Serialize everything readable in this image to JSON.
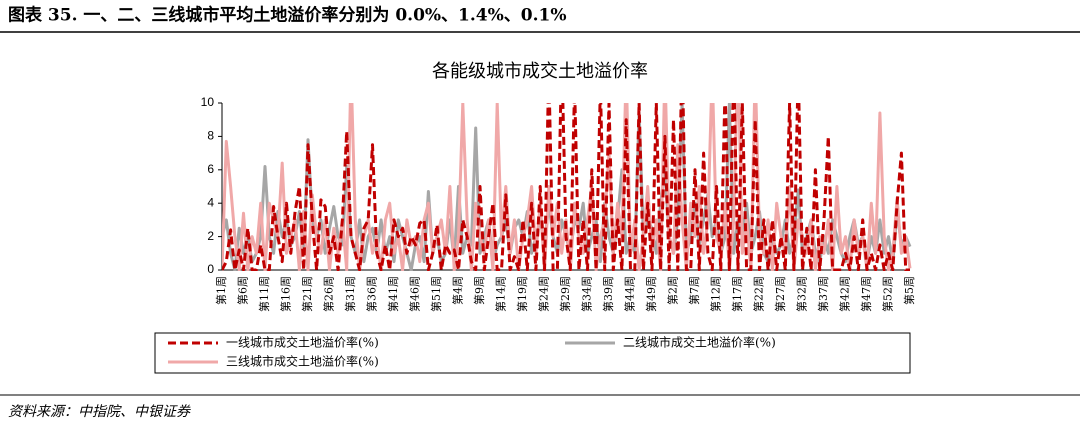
{
  "header": {
    "title": "图表 35. 一、二、三线城市平均土地溢价率分别为 0.0%、1.4%、0.1%"
  },
  "chart_data": {
    "type": "line",
    "title": "各能级城市成交土地溢价率",
    "categories": [
      "第1周",
      null,
      null,
      null,
      null,
      "第6周",
      null,
      null,
      null,
      null,
      "第11周",
      null,
      null,
      null,
      null,
      "第16周",
      null,
      null,
      null,
      null,
      "第21周",
      null,
      null,
      null,
      null,
      "第26周",
      null,
      null,
      null,
      null,
      "第31周",
      null,
      null,
      null,
      null,
      "第36周",
      null,
      null,
      null,
      null,
      "第41周",
      null,
      null,
      null,
      null,
      "第46周",
      null,
      null,
      null,
      null,
      "第51周",
      null,
      null,
      null,
      null,
      "第4周",
      null,
      null,
      null,
      null,
      "第9周",
      null,
      null,
      null,
      null,
      "第14周",
      null,
      null,
      null,
      null,
      "第19周",
      null,
      null,
      null,
      null,
      "第24周",
      null,
      null,
      null,
      null,
      "第29周",
      null,
      null,
      null,
      null,
      "第34周",
      null,
      null,
      null,
      null,
      "第39周",
      null,
      null,
      null,
      null,
      "第44周",
      null,
      null,
      null,
      null,
      "第49周",
      null,
      null,
      null,
      null,
      "第2周",
      null,
      null,
      null,
      null,
      "第7周",
      null,
      null,
      null,
      null,
      "第12周",
      null,
      null,
      null,
      null,
      "第17周",
      null,
      null,
      null,
      null,
      "第22周",
      null,
      null,
      null,
      null,
      "第27周",
      null,
      null,
      null,
      null,
      "第32周",
      null,
      null,
      null,
      null,
      "第37周",
      null,
      null,
      null,
      null,
      "第42周",
      null,
      null,
      null,
      null,
      "第47周",
      null,
      null,
      null,
      null,
      "第52周",
      null,
      null,
      null,
      null,
      "第5周"
    ],
    "series": [
      {
        "name": "一线城市成交土地溢价率(%)",
        "color": "#c00000",
        "dash": true,
        "values": [
          0,
          0.5,
          2.4,
          0,
          1.2,
          0,
          2.5,
          0,
          0,
          1.5,
          0,
          0,
          3.8,
          2,
          0.5,
          4,
          1,
          3.5,
          5,
          0,
          7.5,
          3,
          0,
          4.2,
          3.8,
          1,
          2,
          0,
          3,
          8.3,
          2,
          1,
          0,
          2.5,
          3,
          7.5,
          1,
          0,
          1.5,
          0,
          3,
          2,
          2.5,
          1,
          2,
          1.5,
          2.8,
          3,
          0,
          1,
          2.7,
          0,
          1.5,
          1,
          1.2,
          0,
          3,
          2,
          0.5,
          0,
          5,
          0,
          2,
          4,
          0,
          0,
          4.5,
          0,
          0.8,
          0,
          3,
          0,
          4,
          0,
          5,
          0,
          12,
          0,
          0,
          13,
          2,
          0,
          11,
          0,
          3,
          0,
          6,
          0,
          11,
          0,
          10,
          0,
          3,
          0,
          9,
          0,
          0,
          10,
          0,
          4,
          0,
          10,
          0,
          8,
          0,
          9,
          0,
          13,
          0,
          0,
          6,
          0,
          7,
          1,
          0,
          5,
          0,
          11,
          0,
          12,
          0,
          10,
          0,
          0,
          9,
          0,
          3,
          0,
          3,
          0,
          2,
          0,
          10,
          0,
          12,
          0,
          2.5,
          0,
          6,
          0,
          3,
          8,
          0,
          0,
          0,
          1,
          0,
          2,
          0,
          3,
          0,
          1,
          0,
          1.5,
          0,
          1,
          0,
          4,
          7,
          0,
          0
        ]
      },
      {
        "name": "二线城市成交土地溢价率(%)",
        "color": "#a6a6a6",
        "dash": false,
        "values": [
          2,
          3,
          1,
          0,
          2.5,
          1,
          2,
          0.5,
          1,
          2,
          6.2,
          2,
          1,
          3.5,
          2,
          3,
          1.5,
          2,
          3.5,
          1,
          7.8,
          3,
          2,
          3,
          1,
          2.5,
          3.8,
          2,
          1.5,
          6.2,
          2,
          1,
          3,
          0.5,
          2,
          2.5,
          1,
          3,
          1,
          2,
          0.5,
          3,
          2,
          1,
          0,
          1.5,
          2,
          0.5,
          4.7,
          1,
          2,
          0.5,
          1,
          3,
          0.5,
          5,
          1,
          2,
          1.5,
          8.5,
          1,
          2,
          3,
          0.5,
          1.5,
          2,
          3,
          1,
          2.5,
          3,
          2,
          3.5,
          1,
          2,
          3,
          1.5,
          4,
          2,
          1,
          3,
          2,
          1,
          3,
          2.5,
          4,
          1,
          2,
          3,
          0.5,
          4,
          2,
          1,
          3,
          6,
          1,
          2,
          1,
          9.4,
          2,
          3,
          2.5,
          1,
          4,
          6,
          2,
          1,
          3,
          10,
          1,
          2,
          4,
          1.5,
          3,
          4.5,
          2,
          3,
          1,
          2,
          10,
          1,
          3,
          2,
          4,
          1,
          2,
          3.5,
          1,
          0.5,
          2,
          1,
          1.5,
          3,
          1,
          2,
          4.8,
          1,
          2,
          3,
          1,
          0.5,
          2,
          1,
          3,
          2,
          1,
          0.5,
          2,
          3,
          1.5,
          2,
          0.5,
          2,
          1,
          3,
          1,
          2,
          0.5,
          3.5,
          1.5,
          2,
          1.4
        ]
      },
      {
        "name": "三线城市成交土地溢价率(%)",
        "color": "#f0a8a8",
        "dash": false,
        "values": [
          0,
          7.7,
          5,
          2,
          0,
          3.4,
          0,
          2,
          1,
          4,
          0,
          4,
          3,
          2,
          6.4,
          1,
          2,
          3,
          0,
          3.5,
          0,
          4.5,
          2,
          1,
          3,
          0,
          2.5,
          1,
          3,
          0,
          12,
          3,
          0,
          2,
          3,
          1,
          2,
          0,
          3,
          4,
          1,
          2,
          0,
          3,
          1.5,
          2,
          0.5,
          3,
          4,
          1,
          2,
          3,
          1,
          5,
          0,
          2,
          10,
          3,
          0,
          4,
          2,
          1,
          3,
          0,
          10,
          2,
          5,
          1,
          3,
          0,
          2,
          3,
          5,
          1,
          4,
          0,
          5,
          2,
          4,
          1,
          3,
          0,
          4,
          2,
          1,
          3,
          5,
          0,
          2,
          3,
          7,
          1,
          4,
          2,
          12,
          1,
          3,
          0,
          2,
          5,
          1,
          3,
          0,
          12,
          2,
          1,
          7.5,
          3,
          0,
          4,
          2,
          5,
          1,
          3,
          12,
          2,
          1,
          4,
          0,
          3,
          13,
          1,
          3,
          0,
          12,
          2,
          1,
          3,
          0,
          4,
          2,
          1,
          5,
          0,
          3,
          2,
          1,
          3,
          0,
          2,
          1,
          3,
          0,
          5,
          1,
          2,
          0,
          3,
          1,
          2,
          0,
          4,
          1,
          9.4,
          2,
          0,
          1,
          4.3,
          1,
          2,
          0.1
        ]
      }
    ],
    "ylim": [
      0,
      10
    ],
    "yticks": [
      0,
      2,
      4,
      6,
      8,
      10
    ],
    "grid": false,
    "legend": "bottom"
  },
  "footer": {
    "source": "资料来源：中指院、中银证券"
  }
}
